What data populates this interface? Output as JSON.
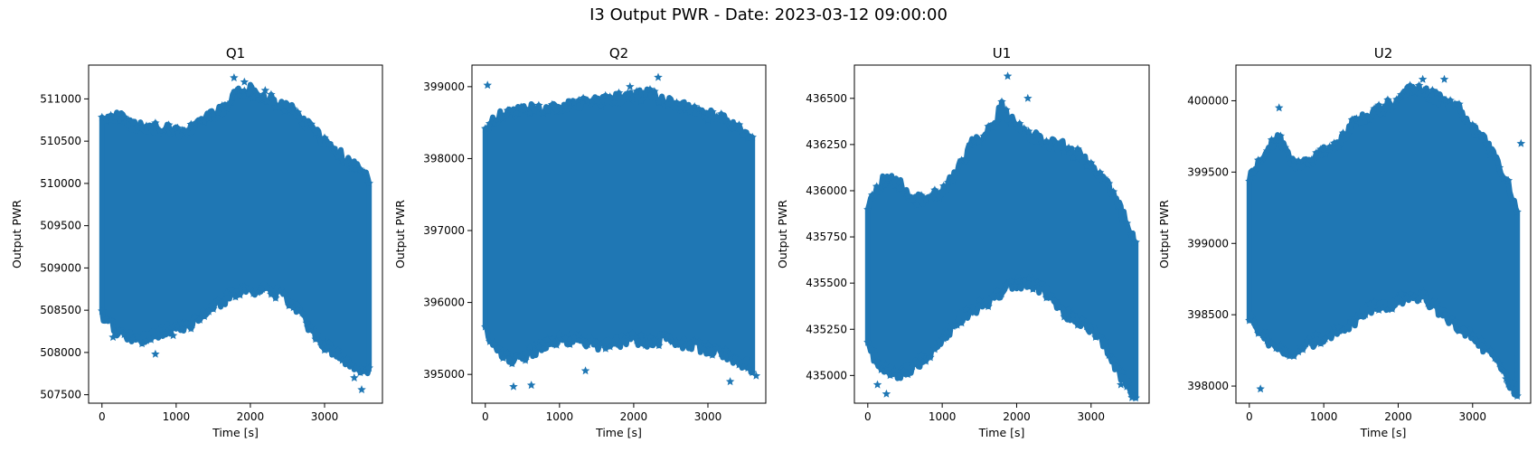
{
  "figure": {
    "suptitle": "I3 Output PWR - Date: 2023-03-12 09:00:00",
    "series_color": "#1f77b4",
    "marker": "star"
  },
  "chart_data": [
    {
      "type": "scatter",
      "title": "Q1",
      "xlabel": "Time [s]",
      "ylabel": "Output PWR",
      "xlim": [
        -180,
        3780
      ],
      "ylim": [
        507400,
        511400
      ],
      "xticks": [
        0,
        1000,
        2000,
        3000
      ],
      "yticks": [
        507500,
        508000,
        508500,
        509000,
        509500,
        510000,
        510500,
        511000
      ],
      "envelope": {
        "t": [
          0,
          200,
          400,
          600,
          800,
          1000,
          1200,
          1400,
          1600,
          1800,
          2000,
          2200,
          2400,
          2600,
          2800,
          3000,
          3200,
          3400,
          3600
        ],
        "upper": [
          510750,
          510800,
          510700,
          510650,
          510650,
          510600,
          510650,
          510750,
          510850,
          511050,
          511100,
          511000,
          510950,
          510850,
          510650,
          510500,
          510350,
          510200,
          510050
        ],
        "lower": [
          508450,
          508250,
          508200,
          508150,
          508250,
          508300,
          508350,
          508500,
          508600,
          508700,
          508750,
          508750,
          508700,
          508550,
          508300,
          508100,
          507950,
          507850,
          507750
        ]
      },
      "extremes": [
        {
          "t": 1780,
          "v": 511250
        },
        {
          "t": 1920,
          "v": 511200
        },
        {
          "t": 2200,
          "v": 511100
        },
        {
          "t": 720,
          "v": 507980
        },
        {
          "t": 3500,
          "v": 507560
        },
        {
          "t": 3400,
          "v": 507700
        },
        {
          "t": 150,
          "v": 508180
        },
        {
          "t": 960,
          "v": 508200
        }
      ]
    },
    {
      "type": "scatter",
      "title": "Q2",
      "xlabel": "Time [s]",
      "ylabel": "Output PWR",
      "xlim": [
        -180,
        3780
      ],
      "ylim": [
        394600,
        399300
      ],
      "xticks": [
        0,
        1000,
        2000,
        3000
      ],
      "yticks": [
        395000,
        396000,
        397000,
        398000,
        399000
      ],
      "envelope": {
        "t": [
          0,
          200,
          400,
          600,
          800,
          1000,
          1200,
          1400,
          1600,
          1800,
          2000,
          2200,
          2400,
          2600,
          2800,
          3000,
          3200,
          3400,
          3600
        ],
        "upper": [
          398400,
          398600,
          398650,
          398700,
          398650,
          398700,
          398750,
          398800,
          398800,
          398850,
          398850,
          398900,
          398800,
          398750,
          398650,
          398600,
          398550,
          398450,
          398300
        ],
        "lower": [
          395600,
          395300,
          395200,
          395300,
          395400,
          395500,
          395500,
          395450,
          395400,
          395450,
          395500,
          395450,
          395500,
          395450,
          395400,
          395350,
          395300,
          395200,
          395100
        ]
      },
      "extremes": [
        {
          "t": 30,
          "v": 399020
        },
        {
          "t": 2330,
          "v": 399130
        },
        {
          "t": 1950,
          "v": 399000
        },
        {
          "t": 620,
          "v": 394850
        },
        {
          "t": 380,
          "v": 394830
        },
        {
          "t": 3300,
          "v": 394900
        },
        {
          "t": 3650,
          "v": 394980
        },
        {
          "t": 1350,
          "v": 395050
        }
      ]
    },
    {
      "type": "scatter",
      "title": "U1",
      "xlabel": "Time [s]",
      "ylabel": "Output PWR",
      "xlim": [
        -180,
        3780
      ],
      "ylim": [
        434850,
        436680
      ],
      "xticks": [
        0,
        1000,
        2000,
        3000
      ],
      "yticks": [
        435000,
        435250,
        435500,
        435750,
        436000,
        436250,
        436500
      ],
      "envelope": {
        "t": [
          0,
          200,
          400,
          600,
          800,
          1000,
          1200,
          1400,
          1600,
          1800,
          2000,
          2200,
          2400,
          2600,
          2800,
          3000,
          3200,
          3400,
          3600
        ],
        "upper": [
          435900,
          436050,
          436050,
          435950,
          435950,
          436000,
          436100,
          436250,
          436300,
          436450,
          436350,
          436300,
          436250,
          436250,
          436200,
          436150,
          436050,
          435900,
          435700
        ],
        "lower": [
          435150,
          435050,
          435000,
          435050,
          435100,
          435200,
          435300,
          435350,
          435400,
          435450,
          435500,
          435500,
          435450,
          435350,
          435300,
          435250,
          435150,
          435000,
          434900
        ]
      },
      "extremes": [
        {
          "t": 1880,
          "v": 436620
        },
        {
          "t": 2150,
          "v": 436500
        },
        {
          "t": 130,
          "v": 434950
        },
        {
          "t": 3550,
          "v": 434880
        },
        {
          "t": 250,
          "v": 434900
        },
        {
          "t": 3400,
          "v": 434950
        }
      ]
    },
    {
      "type": "scatter",
      "title": "U2",
      "xlabel": "Time [s]",
      "ylabel": "Output PWR",
      "xlim": [
        -180,
        3780
      ],
      "ylim": [
        397880,
        400250
      ],
      "xticks": [
        0,
        1000,
        2000,
        3000
      ],
      "yticks": [
        398000,
        398500,
        399000,
        399500,
        400000
      ],
      "envelope": {
        "t": [
          0,
          200,
          400,
          600,
          800,
          1000,
          1200,
          1400,
          1600,
          1800,
          2000,
          2200,
          2400,
          2600,
          2800,
          3000,
          3200,
          3400,
          3600
        ],
        "upper": [
          399450,
          399650,
          399750,
          399550,
          399550,
          399650,
          399700,
          399850,
          399900,
          399950,
          400000,
          400100,
          400050,
          400000,
          399950,
          399800,
          399700,
          399500,
          399250
        ],
        "lower": [
          398500,
          398350,
          398250,
          398250,
          398300,
          398350,
          398400,
          398450,
          398550,
          398550,
          398600,
          398650,
          398600,
          398500,
          398400,
          398350,
          398250,
          398100,
          397950
        ]
      },
      "extremes": [
        {
          "t": 2330,
          "v": 400150
        },
        {
          "t": 2620,
          "v": 400150
        },
        {
          "t": 400,
          "v": 399950
        },
        {
          "t": 150,
          "v": 397980
        },
        {
          "t": 3550,
          "v": 397970
        },
        {
          "t": 3450,
          "v": 398050
        },
        {
          "t": 3650,
          "v": 399700
        }
      ]
    }
  ]
}
